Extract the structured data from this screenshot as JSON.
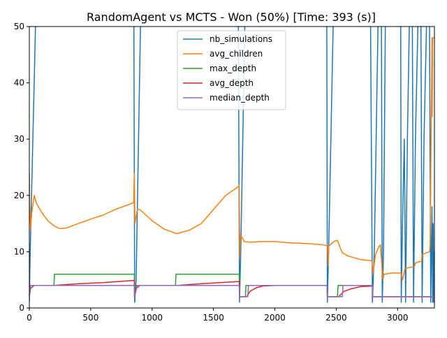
{
  "chart_data": {
    "type": "line",
    "title": "RandomAgent vs MCTS - Won (50%) [Time: 393 (s)]",
    "xlabel": "",
    "ylabel": "",
    "xlim": [
      0,
      3300
    ],
    "ylim": [
      0,
      50
    ],
    "x_ticks": [
      0,
      500,
      1000,
      1500,
      2000,
      2500,
      3000
    ],
    "y_ticks": [
      0,
      10,
      20,
      30,
      40,
      50
    ],
    "grid": false,
    "legend_position": "top-center",
    "series": [
      {
        "name": "nb_simulations",
        "color": "#1f77b4",
        "points": [
          [
            0,
            1
          ],
          [
            5,
            8
          ],
          [
            50,
            50
          ],
          [
            50,
            55
          ],
          [
            845,
            55
          ],
          [
            852,
            50
          ],
          [
            858,
            1
          ],
          [
            870,
            5
          ],
          [
            905,
            50
          ],
          [
            905,
            55
          ],
          [
            1700,
            55
          ],
          [
            1703,
            50
          ],
          [
            1712,
            1
          ],
          [
            1722,
            10
          ],
          [
            1755,
            50
          ],
          [
            1755,
            55
          ],
          [
            2420,
            55
          ],
          [
            2423,
            50
          ],
          [
            2428,
            1
          ],
          [
            2438,
            10
          ],
          [
            2475,
            50
          ],
          [
            2475,
            55
          ],
          [
            2770,
            55
          ],
          [
            2780,
            50
          ],
          [
            2795,
            1
          ],
          [
            2810,
            10
          ],
          [
            2840,
            50
          ],
          [
            2840,
            55
          ],
          [
            2860,
            55
          ],
          [
            2868,
            50
          ],
          [
            2875,
            1
          ],
          [
            2885,
            10
          ],
          [
            2900,
            50
          ],
          [
            2900,
            55
          ],
          [
            3020,
            55
          ],
          [
            3025,
            50
          ],
          [
            3030,
            1
          ],
          [
            3040,
            15
          ],
          [
            3055,
            30
          ],
          [
            3065,
            1
          ],
          [
            3080,
            30
          ],
          [
            3095,
            50
          ],
          [
            3095,
            55
          ],
          [
            3115,
            55
          ],
          [
            3120,
            50
          ],
          [
            3130,
            1
          ],
          [
            3145,
            30
          ],
          [
            3165,
            50
          ],
          [
            3165,
            55
          ],
          [
            3185,
            55
          ],
          [
            3190,
            50
          ],
          [
            3200,
            1
          ],
          [
            3215,
            30
          ],
          [
            3235,
            50
          ],
          [
            3235,
            55
          ],
          [
            3255,
            55
          ],
          [
            3260,
            50
          ],
          [
            3270,
            1
          ],
          [
            3280,
            18
          ],
          [
            3285,
            1
          ],
          [
            3290,
            15
          ],
          [
            3295,
            1
          ],
          [
            3300,
            10
          ]
        ]
      },
      {
        "name": "avg_children",
        "color": "#ff7f0e",
        "points": [
          [
            0,
            24
          ],
          [
            3,
            18
          ],
          [
            10,
            14
          ],
          [
            20,
            17
          ],
          [
            40,
            20
          ],
          [
            60,
            18.5
          ],
          [
            100,
            17
          ],
          [
            150,
            15.5
          ],
          [
            200,
            14.6
          ],
          [
            250,
            14.1
          ],
          [
            300,
            14.2
          ],
          [
            350,
            14.6
          ],
          [
            400,
            15
          ],
          [
            500,
            15.8
          ],
          [
            600,
            16.5
          ],
          [
            700,
            17.5
          ],
          [
            800,
            18.3
          ],
          [
            850,
            18.7
          ],
          [
            855,
            24
          ],
          [
            860,
            15
          ],
          [
            880,
            17.5
          ],
          [
            900,
            17.5
          ],
          [
            1000,
            15.5
          ],
          [
            1100,
            14
          ],
          [
            1200,
            13.2
          ],
          [
            1300,
            13.8
          ],
          [
            1400,
            15
          ],
          [
            1500,
            17.5
          ],
          [
            1600,
            20
          ],
          [
            1700,
            21.5
          ],
          [
            1710,
            21.8
          ],
          [
            1715,
            9
          ],
          [
            1720,
            13
          ],
          [
            1750,
            11.8
          ],
          [
            1800,
            11.7
          ],
          [
            1900,
            11.8
          ],
          [
            2000,
            11.8
          ],
          [
            2100,
            11.6
          ],
          [
            2200,
            11.5
          ],
          [
            2300,
            11.4
          ],
          [
            2400,
            11.2
          ],
          [
            2430,
            11
          ],
          [
            2435,
            7.5
          ],
          [
            2440,
            11
          ],
          [
            2480,
            11.8
          ],
          [
            2510,
            12
          ],
          [
            2530,
            10.8
          ],
          [
            2550,
            9.8
          ],
          [
            2600,
            9.2
          ],
          [
            2700,
            8.6
          ],
          [
            2790,
            8.4
          ],
          [
            2800,
            6
          ],
          [
            2820,
            9.5
          ],
          [
            2850,
            11
          ],
          [
            2860,
            11.2
          ],
          [
            2870,
            8
          ],
          [
            2880,
            5
          ],
          [
            2890,
            6
          ],
          [
            2950,
            6.2
          ],
          [
            3030,
            6.2
          ],
          [
            3040,
            5
          ],
          [
            3050,
            6
          ],
          [
            3060,
            7
          ],
          [
            3100,
            7.2
          ],
          [
            3130,
            7.3
          ],
          [
            3140,
            7.5
          ],
          [
            3145,
            8
          ],
          [
            3175,
            8.2
          ],
          [
            3195,
            8.3
          ],
          [
            3200,
            9.5
          ],
          [
            3260,
            10
          ],
          [
            3265,
            11
          ],
          [
            3280,
            48
          ],
          [
            3282,
            34
          ],
          [
            3285,
            48
          ],
          [
            3300,
            48
          ]
        ]
      },
      {
        "name": "max_depth",
        "color": "#2ca02c",
        "points": [
          [
            0,
            2
          ],
          [
            10,
            4
          ],
          [
            200,
            4
          ],
          [
            205,
            6
          ],
          [
            855,
            6
          ],
          [
            857,
            2
          ],
          [
            870,
            4
          ],
          [
            1190,
            4
          ],
          [
            1195,
            6
          ],
          [
            1710,
            6
          ],
          [
            1712,
            2
          ],
          [
            1760,
            2
          ],
          [
            1765,
            4
          ],
          [
            2425,
            4
          ],
          [
            2427,
            2
          ],
          [
            2510,
            2
          ],
          [
            2515,
            4
          ],
          [
            2795,
            4
          ],
          [
            2797,
            2
          ],
          [
            3300,
            2
          ]
        ]
      },
      {
        "name": "avg_depth",
        "color": "#d62728",
        "points": [
          [
            0,
            2
          ],
          [
            10,
            3.5
          ],
          [
            40,
            4
          ],
          [
            200,
            4
          ],
          [
            400,
            4.3
          ],
          [
            600,
            4.5
          ],
          [
            855,
            4.9
          ],
          [
            857,
            2
          ],
          [
            870,
            3.5
          ],
          [
            900,
            4
          ],
          [
            1200,
            4
          ],
          [
            1400,
            4.3
          ],
          [
            1710,
            4.7
          ],
          [
            1712,
            2
          ],
          [
            1770,
            2
          ],
          [
            1800,
            3
          ],
          [
            1850,
            3.6
          ],
          [
            1900,
            3.9
          ],
          [
            2000,
            4
          ],
          [
            2425,
            4
          ],
          [
            2427,
            2
          ],
          [
            2520,
            2
          ],
          [
            2560,
            2.9
          ],
          [
            2620,
            3.4
          ],
          [
            2700,
            3.8
          ],
          [
            2795,
            3.9
          ],
          [
            2797,
            2
          ],
          [
            3300,
            2
          ]
        ]
      },
      {
        "name": "median_depth",
        "color": "#9467bd",
        "points": [
          [
            0,
            2
          ],
          [
            10,
            4
          ],
          [
            855,
            4
          ],
          [
            857,
            2
          ],
          [
            880,
            4
          ],
          [
            1710,
            4
          ],
          [
            1712,
            2
          ],
          [
            1780,
            2
          ],
          [
            1785,
            4
          ],
          [
            2425,
            4
          ],
          [
            2427,
            2
          ],
          [
            2550,
            2
          ],
          [
            2555,
            4
          ],
          [
            2795,
            4
          ],
          [
            2797,
            2
          ],
          [
            3300,
            2
          ]
        ]
      }
    ]
  }
}
